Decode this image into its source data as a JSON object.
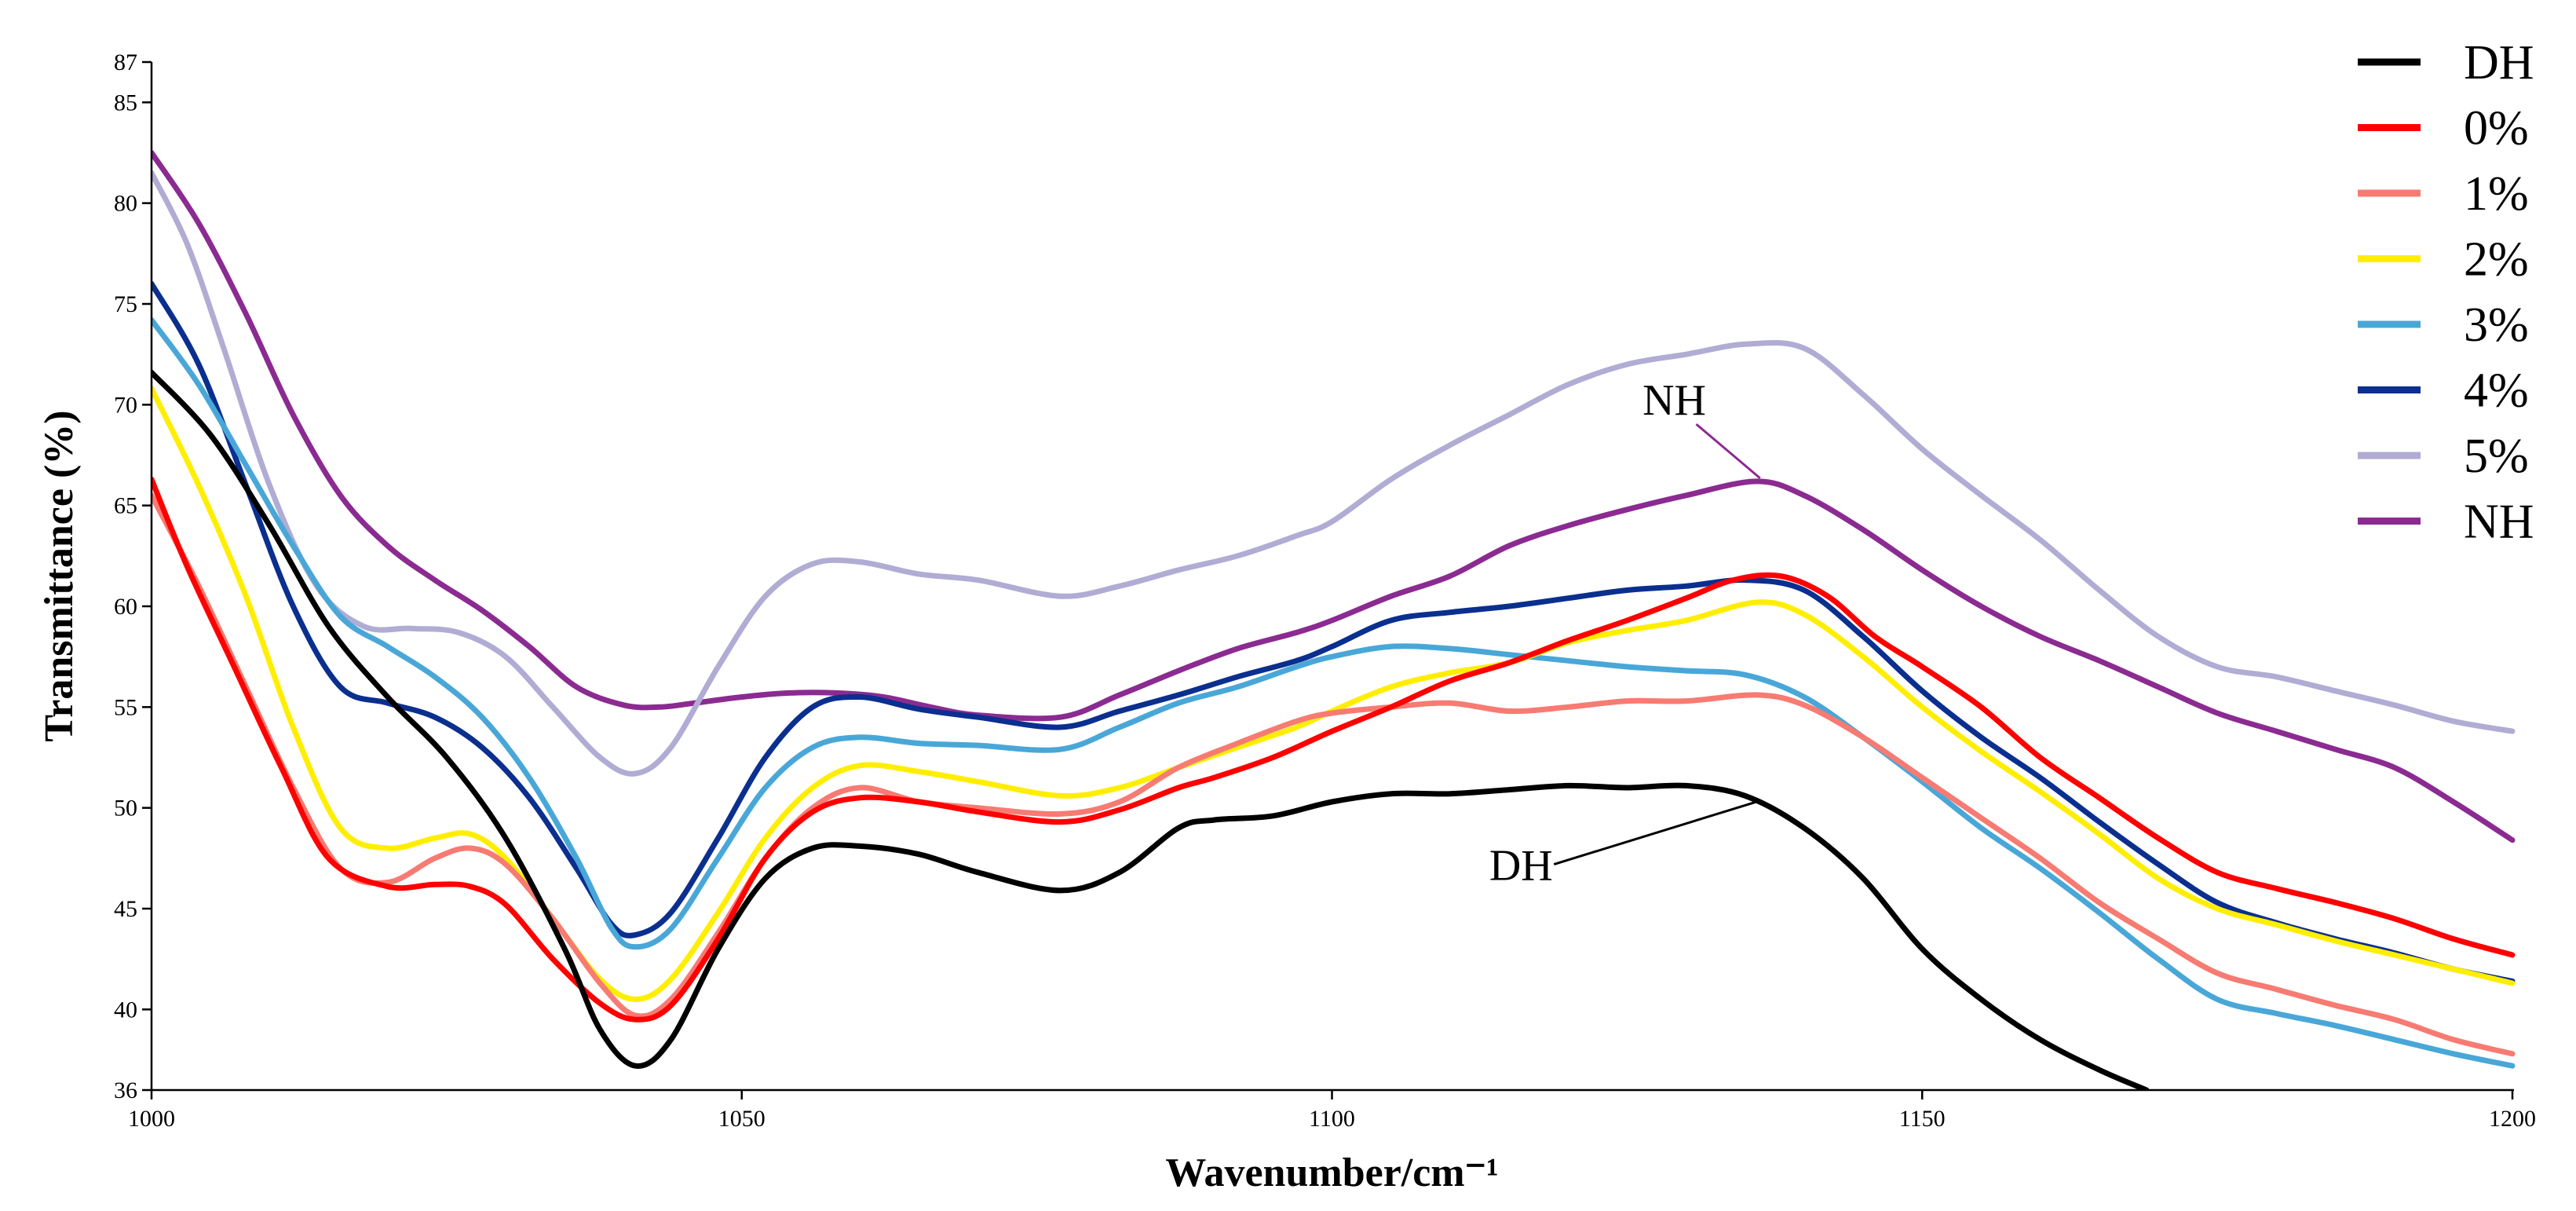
{
  "chart_data": {
    "type": "line",
    "title": "",
    "xlabel": "Wavenumber/cm⁻¹",
    "ylabel": "Transmittance (%)",
    "xlim": [
      1000,
      1200
    ],
    "ylim": [
      36,
      87
    ],
    "xticks": [
      1000,
      1050,
      1100,
      1150,
      1200
    ],
    "yticks": [
      36,
      40,
      45,
      50,
      55,
      60,
      65,
      70,
      75,
      80,
      85,
      87
    ],
    "grid": false,
    "legend_position": "top-right",
    "annotations": [
      {
        "text": "NH",
        "series": "NH",
        "x": 1136,
        "y": 66.2,
        "label_x": 1129,
        "label_y": 69.5
      },
      {
        "text": "DH",
        "series": "DH",
        "x": 1136,
        "y": 50.5,
        "label_x": 1122,
        "label_y": 47.2
      }
    ],
    "series": [
      {
        "name": "DH",
        "color": "#000000",
        "x": [
          1000,
          1005,
          1010,
          1015,
          1020,
          1025,
          1030,
          1035,
          1038,
          1041,
          1044,
          1048,
          1052,
          1056,
          1060,
          1065,
          1070,
          1077,
          1082,
          1087,
          1090,
          1095,
          1100,
          1105,
          1110,
          1115,
          1120,
          1125,
          1130,
          1135,
          1140,
          1145,
          1150,
          1155,
          1160,
          1165,
          1169
        ],
        "y": [
          71.6,
          68.5,
          64,
          59,
          55.5,
          52.5,
          48.5,
          43,
          39,
          37.2,
          38.5,
          43,
          46.5,
          48,
          48.1,
          47.7,
          46.8,
          45.9,
          46.8,
          49,
          49.4,
          49.6,
          50.3,
          50.7,
          50.7,
          50.9,
          51.1,
          51,
          51.1,
          50.6,
          49,
          46.5,
          43,
          40.5,
          38.5,
          37,
          36
        ]
      },
      {
        "name": "0%",
        "color": "#ff0000",
        "x": [
          1000,
          1003,
          1007,
          1011,
          1015,
          1020,
          1024,
          1027,
          1030,
          1034,
          1038,
          1041,
          1044,
          1048,
          1052,
          1056,
          1060,
          1065,
          1070,
          1077,
          1082,
          1087,
          1090,
          1095,
          1100,
          1105,
          1110,
          1115,
          1120,
          1125,
          1130,
          1134,
          1138,
          1142,
          1146,
          1150,
          1155,
          1160,
          1165,
          1170,
          1175,
          1180,
          1185,
          1190,
          1195,
          1200
        ],
        "y": [
          66.3,
          62,
          57,
          52,
          47.5,
          46.1,
          46.2,
          46.1,
          45.2,
          42.5,
          40.3,
          39.5,
          40.2,
          43.5,
          47.5,
          49.8,
          50.5,
          50.3,
          49.8,
          49.3,
          49.9,
          51,
          51.5,
          52.5,
          53.8,
          55,
          56.3,
          57.2,
          58.3,
          59.3,
          60.4,
          61.3,
          61.5,
          60.5,
          58.5,
          57,
          55,
          52.5,
          50.5,
          48.5,
          46.8,
          46,
          45.3,
          44.5,
          43.5,
          42.7
        ]
      },
      {
        "name": "1%",
        "color": "#f77b72",
        "x": [
          1000,
          1004,
          1008,
          1012,
          1016,
          1020,
          1024,
          1027,
          1030,
          1034,
          1038,
          1041,
          1044,
          1048,
          1052,
          1056,
          1060,
          1065,
          1070,
          1077,
          1082,
          1087,
          1092,
          1097,
          1100,
          1105,
          1110,
          1115,
          1120,
          1125,
          1130,
          1136,
          1140,
          1145,
          1150,
          1155,
          1160,
          1165,
          1170,
          1175,
          1180,
          1185,
          1190,
          1195,
          1200
        ],
        "y": [
          65.5,
          61,
          56,
          51,
          47,
          46.3,
          47.5,
          48,
          47.2,
          44.5,
          41.3,
          39.7,
          40.5,
          43.8,
          47.5,
          50,
          51,
          50.3,
          50,
          49.7,
          50.3,
          52,
          53.2,
          54.3,
          54.7,
          55,
          55.2,
          54.8,
          55,
          55.3,
          55.3,
          55.6,
          55.1,
          53.5,
          51.5,
          49.5,
          47.5,
          45.3,
          43.5,
          41.8,
          41,
          40.2,
          39.5,
          38.5,
          37.8
        ]
      },
      {
        "name": "2%",
        "color": "#ffee00",
        "x": [
          1000,
          1004,
          1008,
          1012,
          1016,
          1020,
          1024,
          1027,
          1030,
          1034,
          1038,
          1041,
          1044,
          1048,
          1052,
          1056,
          1060,
          1065,
          1070,
          1077,
          1082,
          1087,
          1092,
          1097,
          1100,
          1105,
          1110,
          1115,
          1120,
          1125,
          1130,
          1136,
          1140,
          1145,
          1150,
          1155,
          1160,
          1165,
          1170,
          1175,
          1180,
          1185,
          1190,
          1195,
          1200
        ],
        "y": [
          70.8,
          66,
          60.5,
          54,
          49,
          48,
          48.5,
          48.7,
          47.5,
          44.5,
          41.5,
          40.5,
          41.5,
          44.8,
          48.5,
          51,
          52.1,
          51.8,
          51.3,
          50.6,
          51,
          52,
          53,
          54,
          54.8,
          56,
          56.7,
          57.2,
          58.2,
          58.8,
          59.3,
          60.2,
          59.6,
          57.5,
          55,
          52.8,
          50.8,
          48.7,
          46.5,
          45,
          44.2,
          43.4,
          42.7,
          42,
          41.3
        ]
      },
      {
        "name": "3%",
        "color": "#49a7d8",
        "x": [
          1000,
          1004,
          1008,
          1012,
          1016,
          1020,
          1024,
          1028,
          1032,
          1036,
          1039,
          1041,
          1044,
          1048,
          1052,
          1056,
          1060,
          1065,
          1070,
          1077,
          1082,
          1087,
          1092,
          1097,
          1100,
          1105,
          1110,
          1115,
          1120,
          1125,
          1130,
          1135,
          1140,
          1145,
          1150,
          1155,
          1160,
          1165,
          1170,
          1175,
          1180,
          1185,
          1190,
          1195,
          1200
        ],
        "y": [
          74.2,
          71,
          67,
          63,
          59.5,
          58,
          56.5,
          54.5,
          51.5,
          47.5,
          44,
          43.1,
          44,
          47.5,
          51,
          53,
          53.5,
          53.2,
          53.1,
          52.9,
          54,
          55.2,
          56,
          57,
          57.5,
          58,
          57.9,
          57.6,
          57.3,
          57,
          56.8,
          56.6,
          55.5,
          53.5,
          51.3,
          49,
          47,
          44.8,
          42.5,
          40.5,
          39.8,
          39.2,
          38.5,
          37.8,
          37.2
        ]
      },
      {
        "name": "4%",
        "color": "#0a2f8f",
        "x": [
          1000,
          1004,
          1008,
          1012,
          1016,
          1020,
          1024,
          1028,
          1032,
          1036,
          1039,
          1041,
          1044,
          1048,
          1052,
          1056,
          1060,
          1065,
          1070,
          1077,
          1082,
          1087,
          1092,
          1097,
          1100,
          1105,
          1110,
          1115,
          1120,
          1125,
          1130,
          1135,
          1140,
          1145,
          1150,
          1155,
          1160,
          1165,
          1170,
          1175,
          1180,
          1185,
          1190,
          1195,
          1200
        ],
        "y": [
          76,
          72,
          66,
          60,
          56,
          55.2,
          54.5,
          53,
          50.5,
          47,
          44.2,
          43.7,
          44.8,
          48.5,
          52.5,
          55,
          55.5,
          54.9,
          54.5,
          54,
          54.8,
          55.6,
          56.5,
          57.3,
          58,
          59.3,
          59.7,
          60,
          60.4,
          60.8,
          61,
          61.3,
          60.8,
          58.5,
          55.8,
          53.5,
          51.5,
          49.3,
          47.2,
          45.3,
          44.3,
          43.5,
          42.8,
          42,
          41.4
        ]
      },
      {
        "name": "5%",
        "color": "#b0acd4",
        "x": [
          1000,
          1003,
          1006,
          1010,
          1014,
          1018,
          1022,
          1026,
          1030,
          1034,
          1038,
          1041,
          1044,
          1048,
          1052,
          1056,
          1060,
          1065,
          1070,
          1077,
          1082,
          1087,
          1092,
          1097,
          1100,
          1105,
          1110,
          1115,
          1120,
          1125,
          1130,
          1135,
          1140,
          1145,
          1150,
          1155,
          1160,
          1165,
          1170,
          1175,
          1180,
          1185,
          1190,
          1195,
          1200
        ],
        "y": [
          81.5,
          78,
          73,
          66,
          61,
          59,
          58.9,
          58.7,
          57.5,
          55,
          52.5,
          51.7,
          53,
          57,
          60.5,
          62.1,
          62.2,
          61.6,
          61.3,
          60.5,
          61,
          61.8,
          62.5,
          63.5,
          64.2,
          66.3,
          68,
          69.5,
          71,
          72,
          72.5,
          73,
          72.8,
          70.5,
          67.8,
          65.5,
          63.3,
          60.8,
          58.5,
          57,
          56.5,
          55.8,
          55.1,
          54.3,
          53.8
        ]
      },
      {
        "name": "NH",
        "color": "#8b2b91",
        "x": [
          1000,
          1004,
          1008,
          1012,
          1016,
          1020,
          1024,
          1028,
          1032,
          1036,
          1040,
          1043,
          1046,
          1050,
          1054,
          1058,
          1062,
          1066,
          1070,
          1077,
          1082,
          1087,
          1092,
          1097,
          1100,
          1105,
          1110,
          1115,
          1120,
          1125,
          1130,
          1136,
          1140,
          1145,
          1150,
          1155,
          1160,
          1165,
          1170,
          1175,
          1180,
          1185,
          1190,
          1195,
          1200
        ],
        "y": [
          82.5,
          79,
          74.5,
          69.5,
          65.5,
          63,
          61.3,
          59.8,
          58,
          56,
          55.1,
          55,
          55.2,
          55.5,
          55.7,
          55.7,
          55.5,
          55,
          54.6,
          54.5,
          55.6,
          56.8,
          57.9,
          58.7,
          59.3,
          60.5,
          61.5,
          63,
          64,
          64.8,
          65.5,
          66.2,
          65.5,
          63.8,
          61.8,
          60,
          58.5,
          57.3,
          56,
          54.7,
          53.8,
          52.9,
          52,
          50.3,
          48.4
        ]
      }
    ]
  }
}
